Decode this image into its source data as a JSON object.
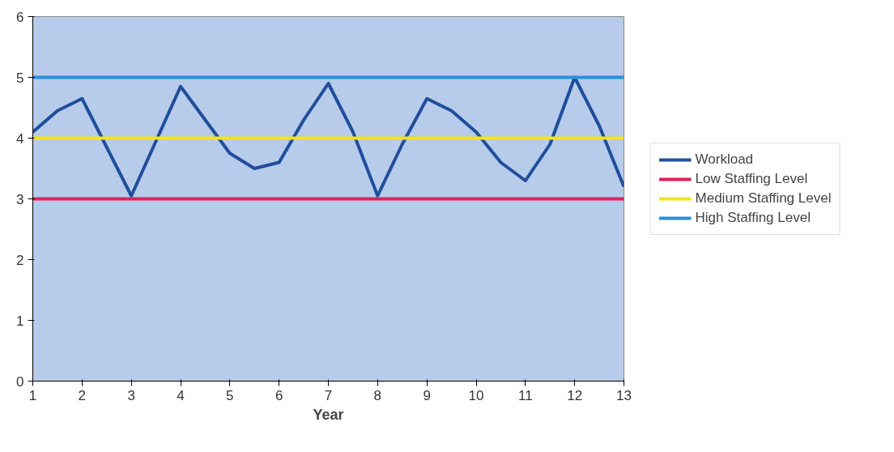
{
  "chart_data": {
    "type": "line",
    "xlabel": "Year",
    "series": [
      {
        "name": "Workload",
        "color": "#1f4e9c",
        "x": [
          1,
          1.5,
          2,
          2.5,
          3,
          3.5,
          4,
          4.5,
          5,
          5.5,
          6,
          6.5,
          7,
          7.5,
          8,
          8.5,
          9,
          9.5,
          10,
          10.5,
          11,
          11.5,
          12,
          12.5,
          13
        ],
        "values": [
          4.1,
          4.45,
          4.65,
          3.85,
          3.05,
          3.95,
          4.85,
          4.3,
          3.75,
          3.5,
          3.6,
          4.3,
          4.9,
          4.1,
          3.05,
          3.9,
          4.65,
          4.45,
          4.1,
          3.6,
          3.3,
          3.9,
          5.0,
          4.2,
          3.2
        ]
      },
      {
        "name": "Low Staffing Level",
        "color": "#e0205a",
        "x": [
          1,
          13
        ],
        "values": [
          3,
          3
        ]
      },
      {
        "name": "Medium Staffing Level",
        "color": "#f2e41a",
        "x": [
          1,
          13
        ],
        "values": [
          4,
          4
        ]
      },
      {
        "name": "High Staffing Level",
        "color": "#2a8fd8",
        "x": [
          1,
          13
        ],
        "values": [
          5,
          5
        ]
      }
    ],
    "xlim": [
      1,
      13
    ],
    "ylim": [
      0,
      6
    ],
    "xticks": [
      1,
      2,
      3,
      4,
      5,
      6,
      7,
      8,
      9,
      10,
      11,
      12,
      13
    ],
    "yticks": [
      0,
      1,
      2,
      3,
      4,
      5,
      6
    ],
    "grid": false,
    "legend": "right",
    "marker": "none",
    "line_style": "solid"
  }
}
